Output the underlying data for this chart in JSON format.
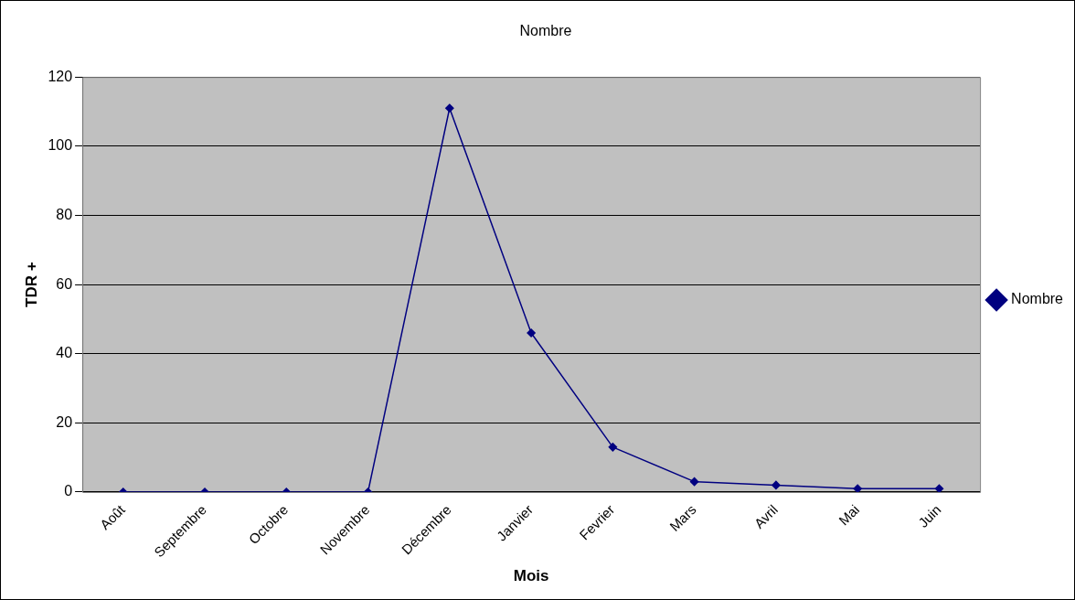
{
  "chart_data": {
    "type": "line",
    "title": "Nombre",
    "xlabel": "Mois",
    "ylabel": "TDR +",
    "categories": [
      "Août",
      "Septembre",
      "Octobre",
      "Novembre",
      "Décembre",
      "Janvier",
      "Fevrier",
      "Mars",
      "Avril",
      "Mai",
      "Juin"
    ],
    "series": [
      {
        "name": "Nombre",
        "color": "#000080",
        "values": [
          0,
          0,
          0,
          0,
          111,
          46,
          13,
          3,
          2,
          1,
          1
        ]
      }
    ],
    "ylim": [
      0,
      120
    ],
    "yticks": [
      0,
      20,
      40,
      60,
      80,
      100,
      120
    ],
    "grid": "y",
    "legend": "right",
    "marker": "diamond",
    "line_style": "solid"
  }
}
